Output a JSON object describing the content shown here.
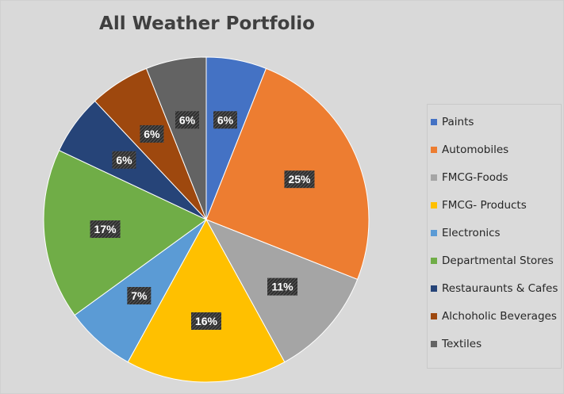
{
  "chart_data": {
    "type": "pie",
    "title": "All Weather Portfolio",
    "slices": [
      {
        "name": "Paints",
        "value": 6,
        "label": "6%",
        "color": "#4472c4"
      },
      {
        "name": "Automobiles",
        "value": 25,
        "label": "25%",
        "color": "#ed7d31"
      },
      {
        "name": "FMCG-Foods",
        "value": 11,
        "label": "11%",
        "color": "#a5a5a5"
      },
      {
        "name": "FMCG- Products",
        "value": 16,
        "label": "16%",
        "color": "#ffc000"
      },
      {
        "name": "Electronics",
        "value": 7,
        "label": "7%",
        "color": "#5b9bd5"
      },
      {
        "name": "Departmental Stores",
        "value": 17,
        "label": "17%",
        "color": "#70ad47"
      },
      {
        "name": "Restauraunts & Cafes",
        "value": 6,
        "label": "6%",
        "color": "#264478"
      },
      {
        "name": "Alchoholic Beverages",
        "value": 6,
        "label": "6%",
        "color": "#9e480e"
      },
      {
        "name": "Textiles",
        "value": 6,
        "label": "6%",
        "color": "#636363"
      }
    ],
    "legend_position": "right"
  }
}
